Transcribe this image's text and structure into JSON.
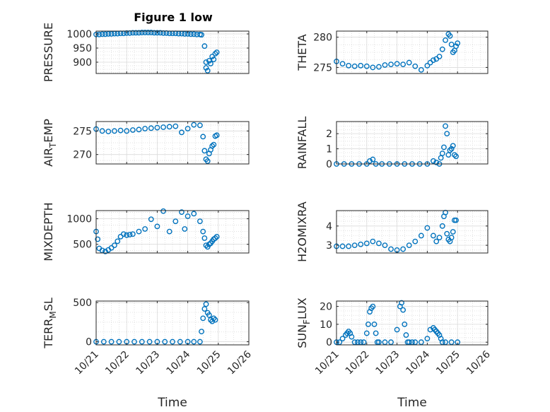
{
  "figure": {
    "title": "Figure 1 low",
    "marker_color": "#0072bd",
    "x_tick_labels": [
      "10/21",
      "10/22",
      "10/23",
      "10/24",
      "10/25",
      "10/26"
    ]
  },
  "chart_data": [
    {
      "type": "scatter",
      "id": "pressure",
      "ylabel": "PRESSURE",
      "title": "Figure 1 low",
      "xlim": [
        0,
        5
      ],
      "ylim": [
        860,
        1010
      ],
      "yticks": [
        900,
        950,
        1000
      ],
      "xlabel": "",
      "x": [
        0.0,
        0.1,
        0.2,
        0.3,
        0.4,
        0.5,
        0.6,
        0.7,
        0.8,
        0.9,
        1.0,
        1.1,
        1.2,
        1.3,
        1.4,
        1.5,
        1.6,
        1.7,
        1.8,
        1.9,
        2.0,
        2.1,
        2.2,
        2.3,
        2.4,
        2.5,
        2.6,
        2.7,
        2.8,
        2.9,
        3.0,
        3.1,
        3.2,
        3.3,
        3.4,
        3.45,
        3.55,
        3.6,
        3.65,
        3.75,
        3.85,
        3.95,
        3.6,
        3.7,
        3.8,
        3.9
      ],
      "y": [
        998,
        998,
        999,
        999,
        1000,
        1000,
        1001,
        1001,
        1002,
        1002,
        1003,
        1003,
        1004,
        1004,
        1004,
        1005,
        1005,
        1005,
        1005,
        1004,
        1004,
        1004,
        1003,
        1003,
        1002,
        1002,
        1002,
        1001,
        1001,
        1000,
        1000,
        999,
        999,
        998,
        998,
        997,
        957,
        900,
        870,
        895,
        910,
        935,
        880,
        905,
        920,
        930
      ]
    },
    {
      "type": "scatter",
      "id": "theta",
      "ylabel": "THETA",
      "xlim": [
        0,
        5
      ],
      "ylim": [
        274,
        281
      ],
      "yticks": [
        275,
        280
      ],
      "xlabel": "",
      "x": [
        0.0,
        0.2,
        0.4,
        0.6,
        0.8,
        1.0,
        1.2,
        1.4,
        1.6,
        1.8,
        2.0,
        2.2,
        2.4,
        2.6,
        2.8,
        3.0,
        3.1,
        3.2,
        3.3,
        3.4,
        3.5,
        3.6,
        3.7,
        3.75,
        3.8,
        3.85,
        3.9,
        3.95,
        4.0
      ],
      "y": [
        276.0,
        275.6,
        275.3,
        275.2,
        275.3,
        275.2,
        275.0,
        275.1,
        275.4,
        275.5,
        275.6,
        275.5,
        275.8,
        275.2,
        274.6,
        275.3,
        275.8,
        276.2,
        276.4,
        276.8,
        278.0,
        279.5,
        280.5,
        280.2,
        278.8,
        277.5,
        277.8,
        278.5,
        279.0
      ]
    },
    {
      "type": "scatter",
      "id": "air-temp",
      "ylabel": "AIR_TEMP",
      "xlim": [
        0,
        5
      ],
      "ylim": [
        268,
        277
      ],
      "yticks": [
        270,
        275
      ],
      "xlabel": "",
      "x": [
        0.0,
        0.2,
        0.4,
        0.6,
        0.8,
        1.0,
        1.2,
        1.4,
        1.6,
        1.8,
        2.0,
        2.2,
        2.4,
        2.6,
        2.8,
        3.0,
        3.2,
        3.4,
        3.5,
        3.55,
        3.6,
        3.65,
        3.7,
        3.75,
        3.8,
        3.85,
        3.9,
        3.95
      ],
      "y": [
        275.4,
        275.0,
        274.9,
        275.0,
        275.1,
        275.0,
        275.2,
        275.3,
        275.5,
        275.6,
        275.7,
        275.8,
        275.9,
        276.0,
        274.7,
        275.5,
        276.3,
        276.2,
        273.8,
        270.8,
        269.0,
        268.6,
        270.2,
        271.0,
        271.8,
        272.1,
        273.9,
        274.1
      ]
    },
    {
      "type": "scatter",
      "id": "rainfall",
      "ylabel": "RAINFALL",
      "xlim": [
        0,
        5
      ],
      "ylim": [
        0,
        2.8
      ],
      "yticks": [
        0,
        1,
        2
      ],
      "xlabel": "",
      "x": [
        0.0,
        0.25,
        0.5,
        0.75,
        1.0,
        1.1,
        1.2,
        1.3,
        1.5,
        1.75,
        2.0,
        2.25,
        2.5,
        2.75,
        3.0,
        3.2,
        3.3,
        3.4,
        3.45,
        3.5,
        3.55,
        3.6,
        3.65,
        3.7,
        3.75,
        3.8,
        3.85,
        3.9,
        3.95
      ],
      "y": [
        0,
        0,
        0,
        0,
        0,
        0.2,
        0.3,
        0,
        0,
        0,
        0,
        0,
        0,
        0,
        0,
        0.2,
        0.1,
        0,
        0.4,
        0.7,
        1.1,
        2.5,
        2.0,
        0.6,
        0.9,
        1.0,
        1.2,
        0.6,
        0.5
      ]
    },
    {
      "type": "scatter",
      "id": "mixdepth",
      "ylabel": "MIXDEPTH",
      "xlim": [
        0,
        5
      ],
      "ylim": [
        330,
        1160
      ],
      "yticks": [
        500,
        1000
      ],
      "xlabel": "",
      "x": [
        0.0,
        0.05,
        0.1,
        0.2,
        0.3,
        0.4,
        0.5,
        0.6,
        0.7,
        0.8,
        0.9,
        1.0,
        1.1,
        1.2,
        1.4,
        1.6,
        1.8,
        2.0,
        2.2,
        2.4,
        2.6,
        2.8,
        2.9,
        3.0,
        3.2,
        3.4,
        3.5,
        3.55,
        3.6,
        3.65,
        3.7,
        3.75,
        3.8,
        3.85,
        3.9,
        3.95
      ],
      "y": [
        750,
        600,
        420,
        380,
        360,
        390,
        430,
        480,
        560,
        650,
        700,
        680,
        690,
        700,
        750,
        800,
        990,
        850,
        1150,
        750,
        950,
        1130,
        800,
        1050,
        1100,
        950,
        750,
        620,
        480,
        450,
        500,
        520,
        560,
        600,
        620,
        650
      ]
    },
    {
      "type": "scatter",
      "id": "h2omixra",
      "ylabel": "H2OMIXRA",
      "xlim": [
        0,
        5
      ],
      "ylim": [
        2.6,
        4.8
      ],
      "yticks": [
        3,
        4
      ],
      "xlabel": "",
      "x": [
        0.0,
        0.2,
        0.4,
        0.6,
        0.8,
        1.0,
        1.2,
        1.4,
        1.6,
        1.8,
        2.0,
        2.2,
        2.4,
        2.6,
        2.8,
        3.0,
        3.2,
        3.3,
        3.4,
        3.5,
        3.55,
        3.6,
        3.65,
        3.7,
        3.75,
        3.8,
        3.85,
        3.9,
        3.95
      ],
      "y": [
        2.95,
        2.95,
        2.95,
        3.0,
        3.05,
        3.1,
        3.2,
        3.1,
        3.0,
        2.8,
        2.75,
        2.8,
        3.0,
        3.2,
        3.5,
        3.9,
        3.5,
        3.2,
        3.4,
        4.0,
        4.5,
        4.7,
        3.6,
        3.3,
        3.2,
        3.4,
        3.7,
        4.3,
        4.3
      ]
    },
    {
      "type": "scatter",
      "id": "terr-msl",
      "ylabel": "TERR_MSL",
      "xlim": [
        0,
        5
      ],
      "ylim": [
        -40,
        520
      ],
      "yticks": [
        0,
        500
      ],
      "xlabel": "Time",
      "x": [
        0.0,
        0.25,
        0.5,
        0.75,
        1.0,
        1.25,
        1.5,
        1.75,
        2.0,
        2.25,
        2.5,
        2.75,
        3.0,
        3.2,
        3.4,
        3.45,
        3.5,
        3.55,
        3.6,
        3.65,
        3.7,
        3.75,
        3.8,
        3.85,
        3.9
      ],
      "y": [
        0,
        0,
        0,
        0,
        0,
        0,
        0,
        0,
        0,
        0,
        0,
        0,
        0,
        0,
        0,
        130,
        300,
        420,
        480,
        370,
        340,
        280,
        260,
        300,
        280
      ]
    },
    {
      "type": "scatter",
      "id": "sun-flux",
      "ylabel": "SUN_FLUX",
      "xlim": [
        0,
        5
      ],
      "ylim": [
        -1.5,
        23
      ],
      "yticks": [
        0,
        10,
        20
      ],
      "xlabel": "Time",
      "x": [
        0.0,
        0.1,
        0.2,
        0.3,
        0.35,
        0.4,
        0.45,
        0.5,
        0.6,
        0.7,
        0.8,
        0.9,
        1.0,
        1.05,
        1.1,
        1.15,
        1.2,
        1.25,
        1.3,
        1.35,
        1.4,
        1.6,
        1.8,
        2.0,
        2.1,
        2.15,
        2.2,
        2.25,
        2.3,
        2.35,
        2.4,
        2.5,
        2.6,
        2.8,
        3.0,
        3.1,
        3.2,
        3.25,
        3.3,
        3.35,
        3.4,
        3.45,
        3.5,
        3.6,
        3.8,
        4.0
      ],
      "y": [
        0,
        0,
        2,
        4,
        5,
        6,
        5,
        3,
        0,
        0,
        0,
        0,
        5,
        10,
        17,
        19,
        20,
        10,
        5,
        0,
        0,
        0,
        0,
        7,
        20,
        22,
        18,
        10,
        4,
        0,
        0,
        0,
        0,
        0,
        2,
        7,
        8,
        7,
        6,
        5,
        4,
        2,
        0,
        0,
        0,
        0
      ]
    }
  ]
}
